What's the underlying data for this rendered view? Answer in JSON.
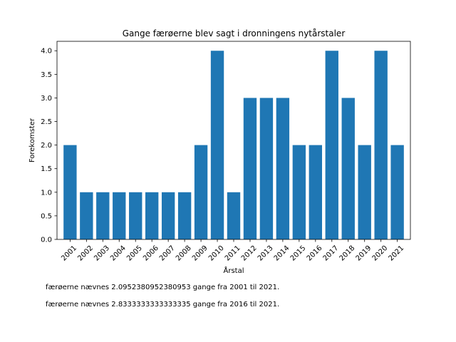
{
  "chart_data": {
    "type": "bar",
    "title": "Gange færøerne blev sagt i dronningens nytårstaler",
    "xlabel": "Årstal",
    "ylabel": "Forekomster",
    "categories": [
      "2001",
      "2002",
      "2003",
      "2004",
      "2005",
      "2006",
      "2007",
      "2008",
      "2009",
      "2010",
      "2011",
      "2012",
      "2013",
      "2014",
      "2015",
      "2016",
      "2017",
      "2018",
      "2019",
      "2020",
      "2021"
    ],
    "values": [
      2,
      1,
      1,
      1,
      1,
      1,
      1,
      1,
      2,
      4,
      1,
      3,
      3,
      3,
      2,
      2,
      4,
      3,
      2,
      4,
      2
    ],
    "ylim": [
      0,
      4.2
    ],
    "yticks": [
      "0.0",
      "0.5",
      "1.0",
      "1.5",
      "2.0",
      "2.5",
      "3.0",
      "3.5",
      "4.0"
    ],
    "bar_color": "#1f77b4",
    "grid": false,
    "x_tick_rotation": 45
  },
  "notes": [
    "færøerne nævnes 2.0952380952380953 gange fra 2001 til 2021.",
    "færøerne nævnes 2.8333333333333335 gange fra 2016 til 2021."
  ]
}
